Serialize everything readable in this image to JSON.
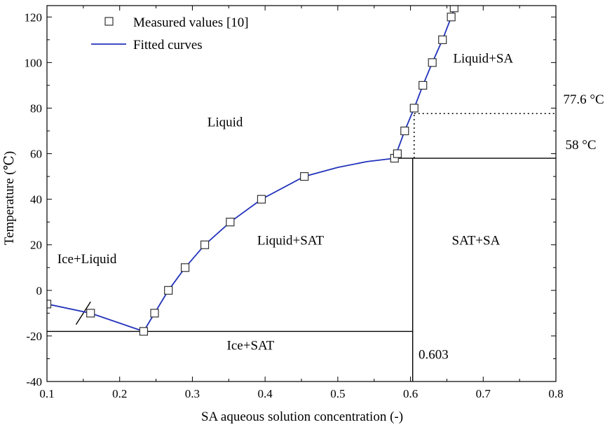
{
  "chart_data": {
    "type": "scatter",
    "xlabel": "SA aqueous solution concentration (-)",
    "ylabel": "Temperature (℃)",
    "xlim": [
      0.1,
      0.8
    ],
    "ylim": [
      -40,
      125
    ],
    "xticks": [
      0.1,
      0.2,
      0.3,
      0.4,
      0.5,
      0.6,
      0.7,
      0.8
    ],
    "yticks": [
      -40,
      -20,
      0,
      20,
      40,
      60,
      80,
      100,
      120
    ],
    "xtick_labels": [
      "0.1",
      "0.2",
      "0.3",
      "0.4",
      "0.5",
      "0.6",
      "0.7",
      "0.8"
    ],
    "ytick_labels": [
      "-40",
      "-20",
      "0",
      "20",
      "40",
      "60",
      "80",
      "100",
      "120"
    ],
    "grid": false,
    "legend_position": "top-left",
    "legend": {
      "measured": "Measured values [10]",
      "fitted": "Fitted curves"
    },
    "colors": {
      "fitted": "#2233bb",
      "marker_edge": "#333333"
    },
    "measured": [
      {
        "x": 0.1,
        "y": -6
      },
      {
        "x": 0.16,
        "y": -10
      },
      {
        "x": 0.233,
        "y": -18
      },
      {
        "x": 0.248,
        "y": -10
      },
      {
        "x": 0.267,
        "y": 0
      },
      {
        "x": 0.29,
        "y": 10
      },
      {
        "x": 0.317,
        "y": 20
      },
      {
        "x": 0.352,
        "y": 30
      },
      {
        "x": 0.395,
        "y": 40
      },
      {
        "x": 0.454,
        "y": 50
      },
      {
        "x": 0.578,
        "y": 58
      },
      {
        "x": 0.582,
        "y": 60
      },
      {
        "x": 0.592,
        "y": 70
      },
      {
        "x": 0.605,
        "y": 80
      },
      {
        "x": 0.617,
        "y": 90
      },
      {
        "x": 0.63,
        "y": 100
      },
      {
        "x": 0.644,
        "y": 110
      },
      {
        "x": 0.656,
        "y": 120
      },
      {
        "x": 0.66,
        "y": 124
      }
    ],
    "fitted_segments": [
      [
        [
          0.1,
          -6
        ],
        [
          0.16,
          -10
        ],
        [
          0.233,
          -18
        ]
      ],
      [
        [
          0.233,
          -18
        ],
        [
          0.248,
          -10
        ],
        [
          0.267,
          0
        ],
        [
          0.29,
          10
        ],
        [
          0.317,
          20
        ],
        [
          0.352,
          30
        ],
        [
          0.395,
          40
        ],
        [
          0.454,
          50
        ],
        [
          0.5,
          54
        ],
        [
          0.54,
          56.5
        ],
        [
          0.578,
          58
        ]
      ],
      [
        [
          0.578,
          58
        ],
        [
          0.592,
          70
        ],
        [
          0.605,
          80
        ],
        [
          0.617,
          90
        ],
        [
          0.63,
          100
        ],
        [
          0.644,
          110
        ],
        [
          0.656,
          120
        ],
        [
          0.662,
          125
        ]
      ]
    ],
    "boundaries": [
      {
        "from": [
          0.1,
          -18
        ],
        "to": [
          0.603,
          -18
        ]
      },
      {
        "from": [
          0.603,
          -40
        ],
        "to": [
          0.603,
          58
        ]
      },
      {
        "from": [
          0.578,
          58
        ],
        "to": [
          0.8,
          58
        ]
      }
    ],
    "dotted_lines": [
      {
        "from": [
          0.605,
          77.6
        ],
        "to": [
          0.8,
          77.6
        ]
      },
      {
        "from": [
          0.605,
          58
        ],
        "to": [
          0.605,
          80
        ]
      }
    ],
    "slash": {
      "from": [
        0.14,
        -15
      ],
      "to": [
        0.16,
        -5
      ]
    },
    "regions": [
      {
        "label": "Liquid+SA",
        "x": 0.7,
        "y": 100
      },
      {
        "label": "Liquid",
        "x": 0.345,
        "y": 72
      },
      {
        "label": "Liquid+SAT",
        "x": 0.435,
        "y": 20
      },
      {
        "label": "SAT+SA",
        "x": 0.69,
        "y": 20
      },
      {
        "label": "Ice+Liquid",
        "x": 0.155,
        "y": 12
      },
      {
        "label": "Ice+SAT",
        "x": 0.38,
        "y": -26
      }
    ],
    "annotations": [
      {
        "label": "77.6 °C",
        "x": 0.81,
        "y": 82
      },
      {
        "label": "58 °C",
        "x": 0.813,
        "y": 62
      },
      {
        "label": "0.603",
        "x": 0.611,
        "y": -30
      }
    ]
  }
}
